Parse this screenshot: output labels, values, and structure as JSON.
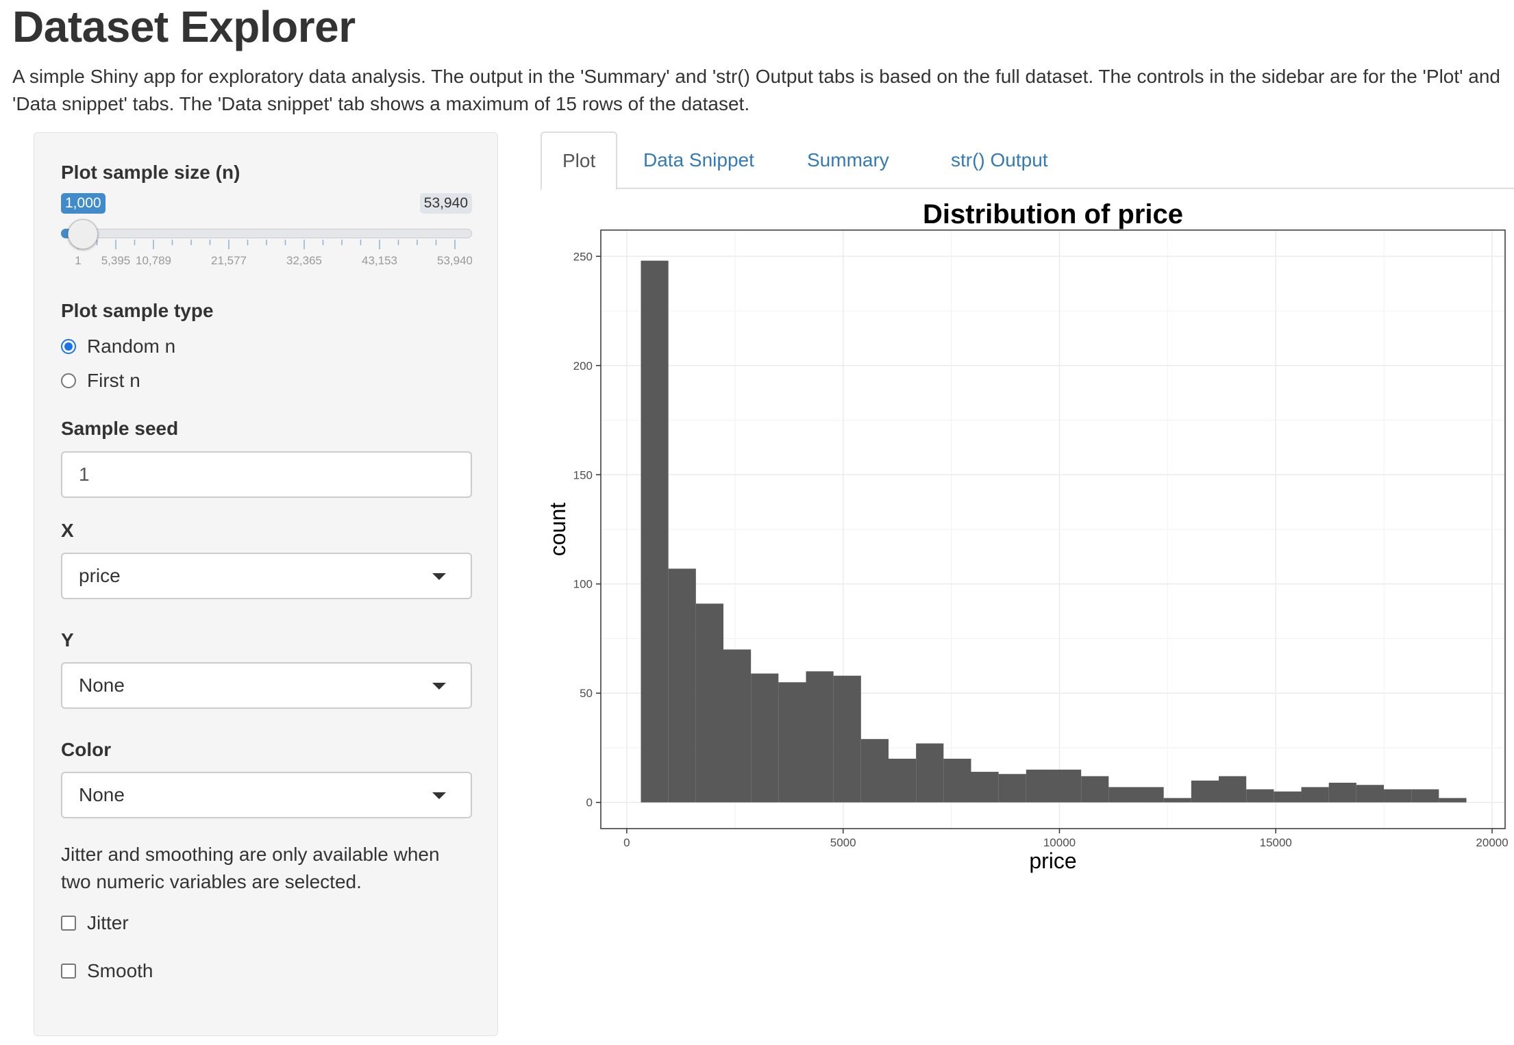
{
  "page": {
    "title": "Dataset Explorer",
    "description": "A simple Shiny app for exploratory data analysis. The output in the 'Summary' and 'str() Output tabs is based on the full dataset. The controls in the sidebar are for the 'Plot' and 'Data snippet' tabs. The 'Data snippet' tab shows a maximum of 15 rows of the dataset."
  },
  "sidebar": {
    "sample_size": {
      "label": "Plot sample size (n)",
      "value_label": "1,000",
      "max_label": "53,940",
      "min": 1,
      "max": 53940,
      "value": 1000,
      "tick_labels": [
        "1",
        "5,395",
        "10,789",
        "21,577",
        "32,365",
        "43,153",
        "53,940"
      ]
    },
    "sample_type": {
      "label": "Plot sample type",
      "options": [
        "Random n",
        "First n"
      ],
      "selected": "Random n"
    },
    "seed": {
      "label": "Sample seed",
      "value": "1"
    },
    "x": {
      "label": "X",
      "value": "price"
    },
    "y": {
      "label": "Y",
      "value": "None"
    },
    "color": {
      "label": "Color",
      "value": "None"
    },
    "help": "Jitter and smoothing are only available when two numeric variables are selected.",
    "jitter": {
      "label": "Jitter",
      "checked": false
    },
    "smooth": {
      "label": "Smooth",
      "checked": false
    }
  },
  "tabs": [
    {
      "label": "Plot",
      "active": true
    },
    {
      "label": "Data Snippet",
      "active": false
    },
    {
      "label": "Summary",
      "active": false
    },
    {
      "label": "str() Output",
      "active": false
    }
  ],
  "chart_data": {
    "type": "bar",
    "title": "Distribution of price",
    "xlabel": "price",
    "ylabel": "count",
    "bins_start": 326,
    "bin_width": 636,
    "counts": [
      248,
      107,
      91,
      70,
      59,
      55,
      60,
      58,
      29,
      20,
      27,
      20,
      14,
      13,
      15,
      15,
      12,
      7,
      7,
      2,
      10,
      12,
      6,
      5,
      7,
      9,
      8,
      6,
      6,
      2
    ],
    "xlim": [
      -600,
      20300
    ],
    "ylim": [
      -12,
      262
    ],
    "xticks": [
      0,
      5000,
      10000,
      15000,
      20000
    ],
    "yticks": [
      0,
      50,
      100,
      150,
      200,
      250
    ],
    "bar_color": "#595959",
    "grid": true
  },
  "colors": {
    "accent": "#428bca",
    "link": "#337ab7",
    "radio": "#1a73e8"
  }
}
